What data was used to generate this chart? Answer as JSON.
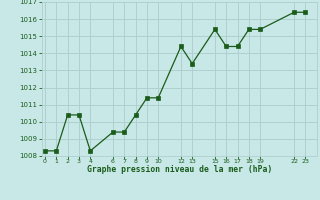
{
  "x_values": [
    0,
    1,
    2,
    3,
    4,
    6,
    7,
    8,
    9,
    10,
    12,
    13,
    15,
    16,
    17,
    18,
    19,
    22,
    23
  ],
  "y_values": [
    1008.3,
    1008.3,
    1010.4,
    1010.4,
    1008.3,
    1009.4,
    1009.4,
    1010.4,
    1011.4,
    1011.4,
    1014.4,
    1013.4,
    1015.4,
    1014.4,
    1014.4,
    1015.4,
    1015.4,
    1016.4,
    1016.4
  ],
  "line_color": "#1a5c1a",
  "marker_color": "#1a5c1a",
  "bg_color": "#c8e8e8",
  "grid_color": "#b0d0d0",
  "xlabel": "Graphe pression niveau de la mer (hPa)",
  "xlabel_color": "#1a5c1a",
  "tick_label_color": "#1a5c1a",
  "ylim": [
    1008,
    1017
  ],
  "yticks": [
    1008,
    1009,
    1010,
    1011,
    1012,
    1013,
    1014,
    1015,
    1016,
    1017
  ],
  "xtick_positions": [
    0,
    1,
    2,
    3,
    4,
    6,
    7,
    8,
    9,
    10,
    12,
    13,
    15,
    16,
    17,
    18,
    19,
    22,
    23
  ],
  "xtick_labels": [
    "0",
    "1",
    "2",
    "3",
    "4",
    "6",
    "7",
    "8",
    "9",
    "10",
    "12",
    "13",
    "15",
    "16",
    "17",
    "18",
    "19",
    "22",
    "23"
  ],
  "xlim": [
    -0.3,
    24.0
  ]
}
